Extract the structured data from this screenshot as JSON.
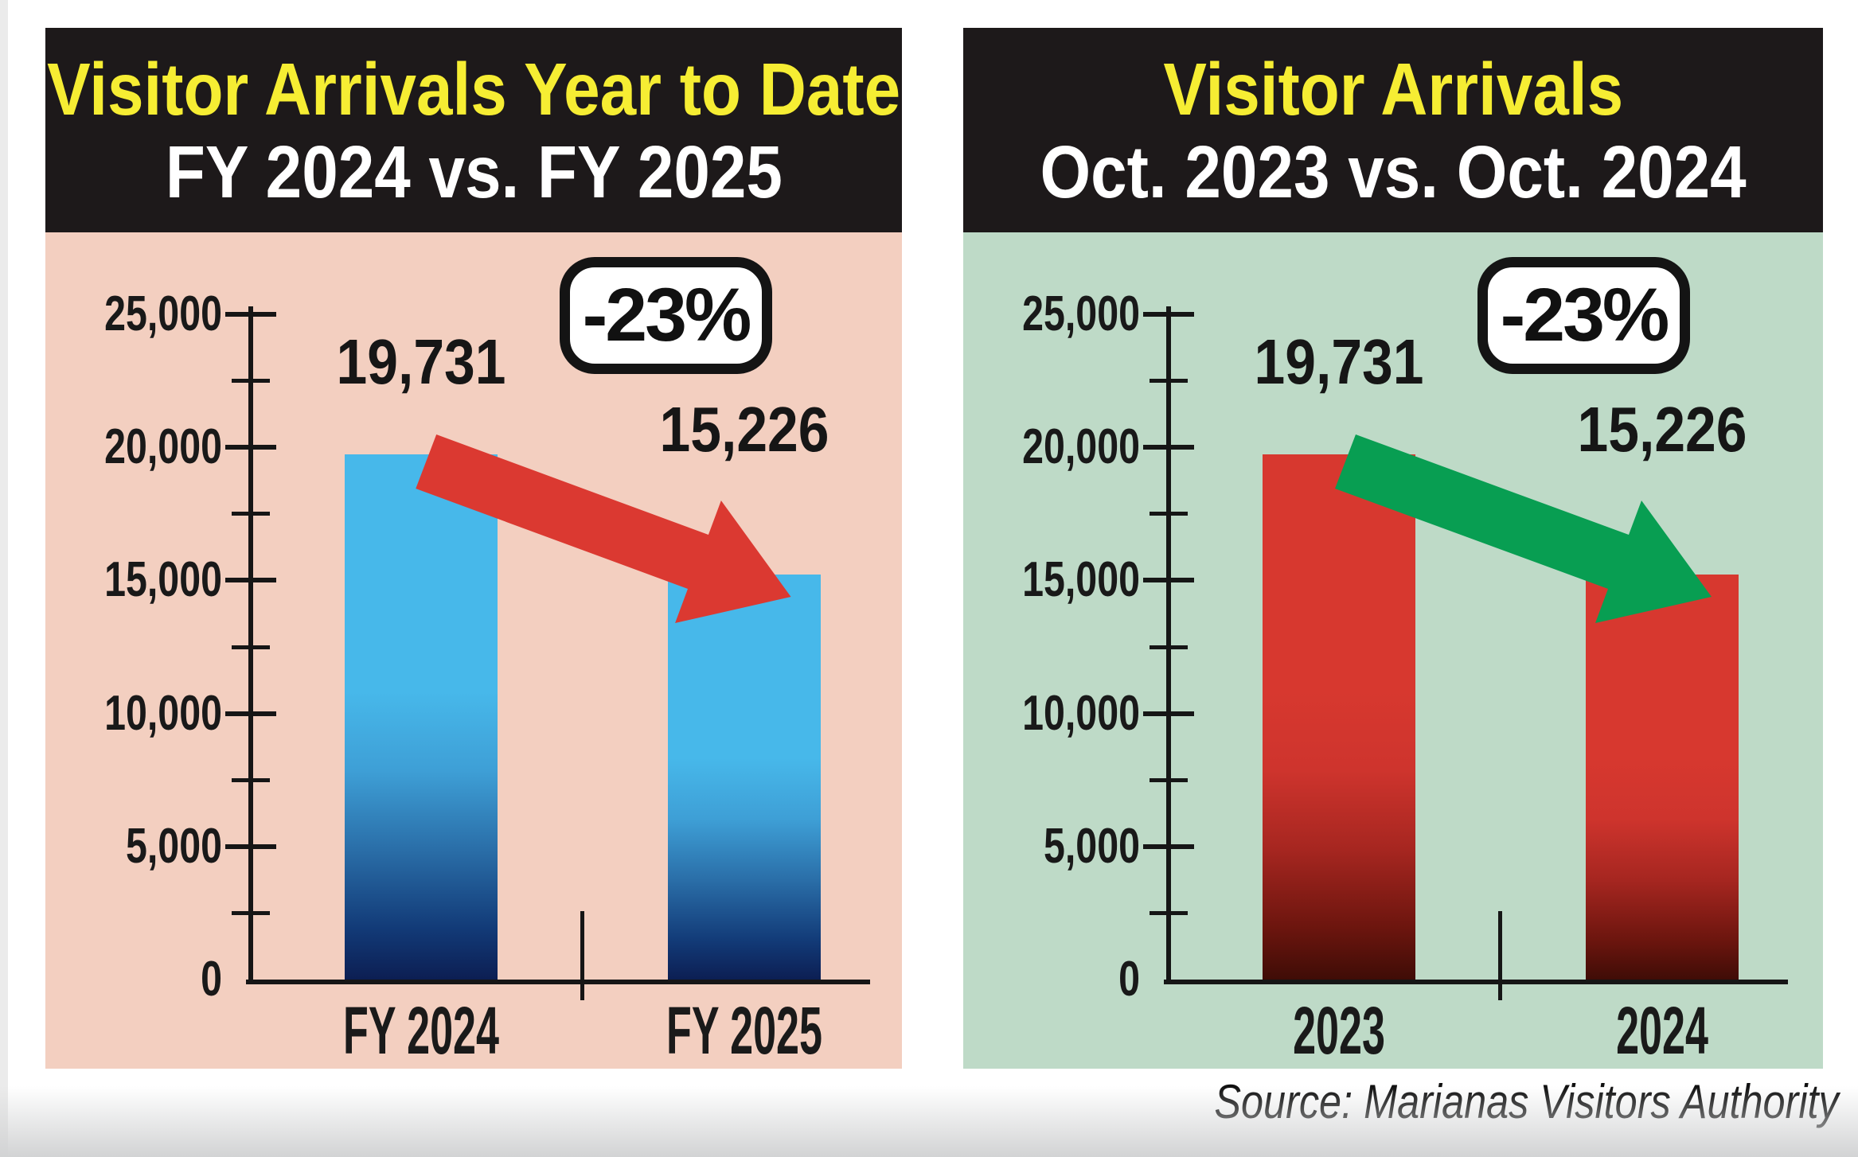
{
  "source_note": "Source: Marianas Visitors Authority",
  "header_colors": {
    "bg": "#1d191a",
    "title": "#f6ed33",
    "subtitle": "#ffffff"
  },
  "ink_color": "#161616",
  "chart_data": [
    {
      "type": "bar",
      "title": "Visitor Arrivals Year to Date",
      "subtitle": "FY 2024 vs. FY 2025",
      "categories": [
        "FY 2024",
        "FY 2025"
      ],
      "values": [
        19731,
        15226
      ],
      "value_labels": [
        "19,731",
        "15,226"
      ],
      "change_label": "-23%",
      "ylabel": "",
      "ylim": [
        0,
        25000
      ],
      "yticks": {
        "values": [
          0,
          5000,
          10000,
          15000,
          20000,
          25000
        ],
        "labels": [
          "0",
          "5,000",
          "10,000",
          "15,000",
          "20,000",
          "25,000"
        ]
      },
      "yticks_minor": [
        2500,
        7500,
        12500,
        17500,
        22500
      ],
      "grid": false,
      "legend": "none",
      "panel_bg": "#f3cfc0",
      "bar_gradient": [
        "#47b8ea",
        "#3e9fd6",
        "#2a6ea8",
        "#123a77",
        "#0c1d51"
      ],
      "arrow_color": "#db3931"
    },
    {
      "type": "bar",
      "title": "Visitor Arrivals",
      "subtitle": "Oct. 2023 vs. Oct. 2024",
      "categories": [
        "2023",
        "2024"
      ],
      "values": [
        19731,
        15226
      ],
      "value_labels": [
        "19,731",
        "15,226"
      ],
      "change_label": "-23%",
      "ylabel": "",
      "ylim": [
        0,
        25000
      ],
      "yticks": {
        "values": [
          0,
          5000,
          10000,
          15000,
          20000,
          25000
        ],
        "labels": [
          "0",
          "5,000",
          "10,000",
          "15,000",
          "20,000",
          "25,000"
        ]
      },
      "yticks_minor": [
        2500,
        7500,
        12500,
        17500,
        22500
      ],
      "grid": false,
      "legend": "none",
      "panel_bg": "#bedac7",
      "bar_gradient": [
        "#d7382f",
        "#ce342d",
        "#a62620",
        "#6b150e",
        "#3d0c06"
      ],
      "arrow_color": "#089e52"
    }
  ]
}
